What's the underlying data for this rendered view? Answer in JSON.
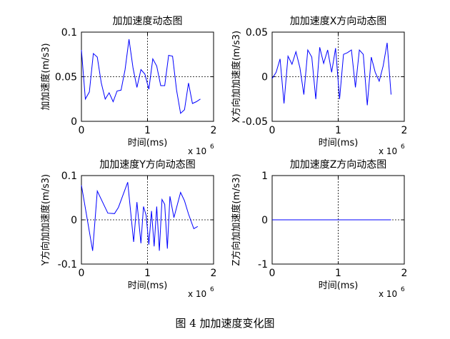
{
  "caption": "图 4  加加速度变化图",
  "chart_data": [
    {
      "type": "line",
      "title": "加加速度动态图",
      "xlabel": "时间(ms)",
      "ylabel": "加加速度(m/s3)",
      "x_exponent": "x 10",
      "x_exponent_power": "6",
      "xlim": [
        0,
        2000000
      ],
      "ylim": [
        0,
        0.1
      ],
      "xticks": [
        "0",
        "1",
        "2"
      ],
      "yticks": [
        "0",
        "0.05",
        "0.1"
      ],
      "grid": "dotted centre lines",
      "series_color": "#0000ff",
      "x": [
        0,
        60000,
        120000,
        180000,
        240000,
        300000,
        360000,
        420000,
        480000,
        540000,
        600000,
        660000,
        720000,
        780000,
        840000,
        900000,
        960000,
        1020000,
        1080000,
        1140000,
        1200000,
        1260000,
        1320000,
        1380000,
        1440000,
        1500000,
        1560000,
        1620000,
        1680000,
        1740000,
        1800000
      ],
      "y": [
        0.08,
        0.025,
        0.033,
        0.076,
        0.072,
        0.043,
        0.025,
        0.032,
        0.022,
        0.034,
        0.035,
        0.058,
        0.092,
        0.06,
        0.038,
        0.058,
        0.053,
        0.036,
        0.07,
        0.062,
        0.04,
        0.04,
        0.074,
        0.073,
        0.035,
        0.009,
        0.013,
        0.043,
        0.02,
        0.022,
        0.025
      ]
    },
    {
      "type": "line",
      "title": "加加速度X方向动态图",
      "xlabel": "时间(ms)",
      "ylabel": "X方向加加速度(m/s3)",
      "x_exponent": "x 10",
      "x_exponent_power": "6",
      "xlim": [
        0,
        2000000
      ],
      "ylim": [
        -0.05,
        0.05
      ],
      "xticks": [
        "0",
        "1",
        "2"
      ],
      "yticks": [
        "-0.05",
        "0",
        "0.05"
      ],
      "grid": "dotted centre lines",
      "series_color": "#0000ff",
      "x": [
        0,
        60000,
        120000,
        180000,
        240000,
        300000,
        360000,
        420000,
        480000,
        540000,
        600000,
        660000,
        720000,
        780000,
        840000,
        900000,
        960000,
        1020000,
        1080000,
        1140000,
        1200000,
        1260000,
        1320000,
        1380000,
        1440000,
        1500000,
        1560000,
        1620000,
        1680000,
        1740000,
        1800000
      ],
      "y": [
        -0.002,
        0.005,
        0.02,
        -0.03,
        0.023,
        0.014,
        0.028,
        0.01,
        -0.02,
        0.03,
        0.022,
        -0.025,
        0.033,
        0.015,
        0.03,
        0.005,
        0.032,
        -0.025,
        0.025,
        0.027,
        0.03,
        -0.012,
        0.03,
        0.025,
        -0.032,
        0.022,
        0.005,
        -0.005,
        0.012,
        0.038,
        -0.02
      ]
    },
    {
      "type": "line",
      "title": "加加速度Y方向动态图",
      "xlabel": "时间(ms)",
      "ylabel": "Y方向加加速度(m/s3)",
      "x_exponent": "x 10",
      "x_exponent_power": "6",
      "xlim": [
        0,
        2000000
      ],
      "ylim": [
        -0.1,
        0.1
      ],
      "xticks": [
        "0",
        "1",
        "2"
      ],
      "yticks": [
        "-0.1",
        "0",
        "0.1"
      ],
      "grid": "dotted centre lines",
      "series_color": "#0000ff",
      "x": [
        0,
        90000,
        170000,
        240000,
        400000,
        500000,
        560000,
        700000,
        790000,
        840000,
        900000,
        940000,
        980000,
        1020000,
        1060000,
        1100000,
        1140000,
        1180000,
        1220000,
        1260000,
        1300000,
        1340000,
        1400000,
        1500000,
        1560000,
        1620000,
        1700000,
        1760000
      ],
      "y": [
        0.078,
        0.0,
        -0.07,
        0.065,
        0.015,
        0.014,
        0.028,
        0.085,
        -0.05,
        0.04,
        -0.053,
        0.03,
        0.01,
        -0.056,
        0.02,
        -0.06,
        0.03,
        -0.07,
        0.046,
        0.035,
        -0.065,
        0.053,
        0.005,
        0.062,
        0.043,
        0.013,
        -0.02,
        -0.015
      ]
    },
    {
      "type": "line",
      "title": "加加速度Z方向动态图",
      "xlabel": "时间(ms)",
      "ylabel": "Z方向加加速度(m/s3)",
      "x_exponent": "x 10",
      "x_exponent_power": "6",
      "xlim": [
        0,
        2000000
      ],
      "ylim": [
        -1,
        1
      ],
      "xticks": [
        "0",
        "1",
        "2"
      ],
      "yticks": [
        "-1",
        "0",
        "1"
      ],
      "grid": "dotted centre lines",
      "series_color": "#0000ff",
      "x": [
        0,
        1800000
      ],
      "y": [
        0,
        0
      ]
    }
  ]
}
